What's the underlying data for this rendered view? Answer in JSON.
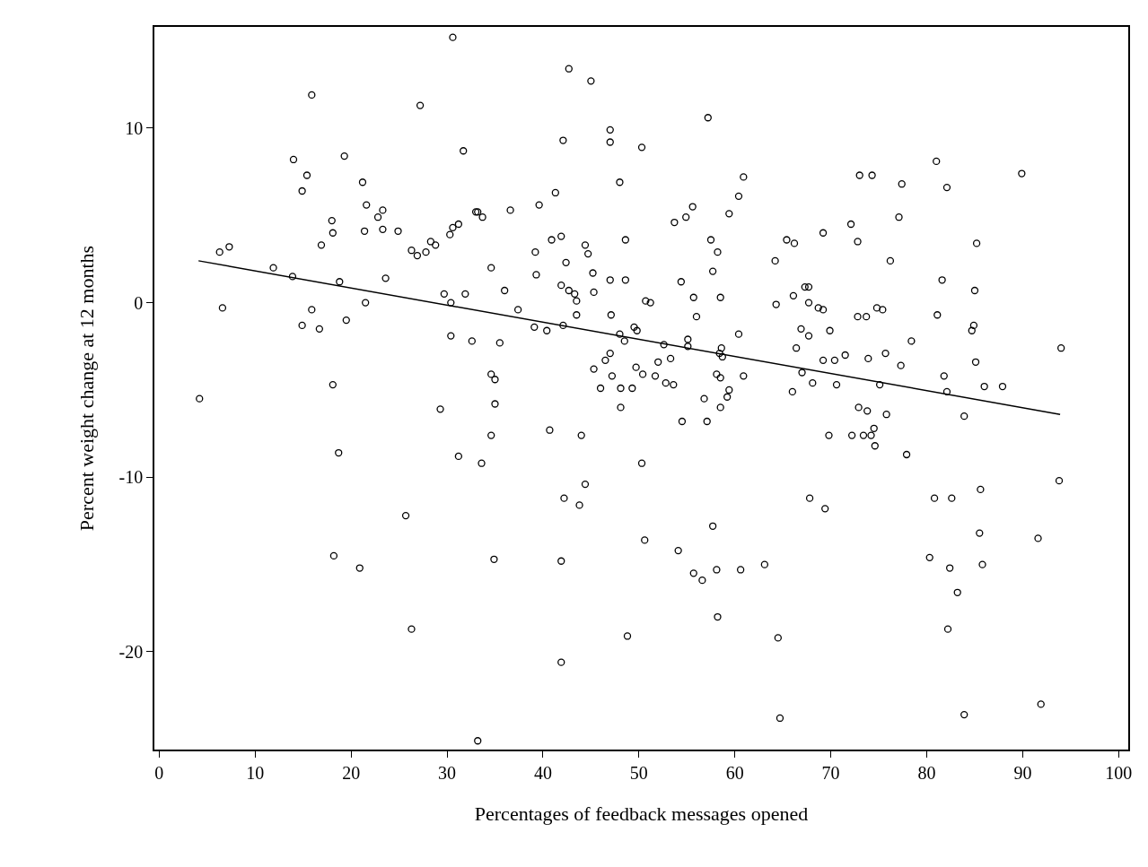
{
  "chart_data": {
    "type": "scatter",
    "xlabel": "Percentages of feedback messages opened",
    "ylabel": "Percent weight change at 12 months",
    "xlim": [
      -0.5,
      101
    ],
    "ylim": [
      -25.6,
      15.8
    ],
    "xticks": [
      0,
      10,
      20,
      30,
      40,
      50,
      60,
      70,
      80,
      90,
      100
    ],
    "yticks": [
      -20,
      -10,
      0,
      10
    ],
    "series": [
      {
        "type": "scatter",
        "color": "#000000",
        "marker": "circle",
        "x": [
          30.6,
          15.9,
          27.2,
          31.7,
          14.0,
          15.4,
          14.9,
          19.3,
          21.2,
          21.6,
          23.3,
          22.8,
          18.0,
          18.1,
          21.4,
          23.3,
          24.9,
          16.9,
          6.3,
          7.3,
          26.3,
          26.9,
          27.8,
          28.3,
          28.8,
          30.3,
          30.6,
          31.2,
          33.0,
          33.2,
          33.7,
          34.6,
          11.9,
          13.9,
          18.8,
          23.6,
          6.6,
          15.9,
          21.5,
          29.7,
          30.4,
          31.9,
          14.9,
          16.7,
          19.5,
          30.4,
          32.6,
          18.1,
          42.7,
          45.0,
          57.2,
          47.0,
          47.0,
          42.1,
          50.3,
          48.0,
          60.9,
          60.4,
          41.3,
          39.6,
          36.6,
          55.6,
          54.9,
          53.7,
          59.4,
          69.2,
          48.6,
          40.9,
          41.9,
          57.5,
          44.4,
          44.7,
          39.2,
          65.4,
          66.2,
          58.2,
          64.2,
          42.4,
          57.7,
          39.3,
          45.2,
          47.0,
          48.6,
          54.4,
          41.9,
          42.7,
          43.3,
          43.5,
          45.3,
          36.0,
          50.7,
          51.2,
          55.7,
          58.5,
          66.1,
          67.3,
          67.7,
          64.3,
          67.7,
          68.7,
          69.2,
          37.4,
          43.5,
          47.1,
          56.0,
          39.1,
          40.4,
          42.1,
          35.5,
          48.0,
          48.5,
          49.5,
          49.8,
          52.6,
          55.1,
          55.1,
          58.6,
          58.4,
          58.7,
          60.4,
          66.9,
          67.7,
          66.4,
          69.2,
          67.0,
          68.1,
          47.0,
          46.5,
          45.3,
          52.0,
          53.3,
          49.7,
          50.4,
          51.7,
          47.2,
          34.6,
          35.0,
          58.1,
          58.5,
          60.9,
          81.0,
          89.9,
          73.0,
          74.3,
          77.4,
          82.1,
          77.1,
          72.1,
          72.8,
          85.2,
          76.2,
          81.6,
          85.0,
          72.8,
          73.7,
          74.8,
          75.4,
          81.1,
          84.9,
          84.7,
          69.9,
          78.4,
          94.0,
          70.4,
          71.5,
          73.9,
          75.7,
          77.3,
          85.1,
          81.8,
          70.6,
          75.1,
          86.0,
          87.9,
          4.2,
          18.7,
          18.2,
          20.9,
          25.7,
          26.3,
          29.3,
          31.2,
          33.6,
          34.6,
          35.0,
          34.9,
          33.2,
          40.7,
          44.0,
          44.4,
          42.2,
          43.8,
          41.9,
          48.8,
          41.9,
          46.0,
          48.1,
          49.3,
          48.1,
          50.3,
          50.6,
          54.1,
          55.7,
          56.6,
          58.1,
          57.7,
          58.2,
          60.6,
          63.1,
          64.5,
          64.7,
          67.8,
          69.4,
          54.5,
          57.1,
          58.5,
          59.2,
          59.4,
          56.8,
          52.8,
          53.6,
          66.0,
          69.8,
          72.2,
          73.4,
          74.2,
          74.5,
          74.6,
          72.9,
          73.8,
          75.8,
          77.9,
          83.9,
          82.1,
          93.8,
          80.8,
          82.6,
          85.6,
          85.5,
          85.8,
          91.6,
          80.3,
          82.4,
          83.2,
          82.2,
          83.9,
          91.9
        ],
        "values": [
          15.2,
          11.9,
          11.3,
          8.7,
          8.2,
          7.3,
          6.4,
          8.4,
          6.9,
          5.6,
          5.3,
          4.9,
          4.7,
          4.0,
          4.1,
          4.2,
          4.1,
          3.3,
          2.9,
          3.2,
          3.0,
          2.7,
          2.9,
          3.5,
          3.3,
          3.9,
          4.3,
          4.5,
          5.2,
          5.2,
          4.9,
          2.0,
          2.0,
          1.5,
          1.2,
          1.4,
          -0.3,
          -0.4,
          0.0,
          0.5,
          0.0,
          0.5,
          -1.3,
          -1.5,
          -1.0,
          -1.9,
          -2.2,
          -4.7,
          13.4,
          12.7,
          10.6,
          9.9,
          9.2,
          9.3,
          8.9,
          6.9,
          7.2,
          6.1,
          6.3,
          5.6,
          5.3,
          5.5,
          4.9,
          4.6,
          5.1,
          4.0,
          3.6,
          3.6,
          3.8,
          3.6,
          3.3,
          2.8,
          2.9,
          3.6,
          3.4,
          2.9,
          2.4,
          2.3,
          1.8,
          1.6,
          1.7,
          1.3,
          1.3,
          1.2,
          1.0,
          0.7,
          0.5,
          0.1,
          0.6,
          0.7,
          0.1,
          0.0,
          0.3,
          0.3,
          0.4,
          0.9,
          0.9,
          -0.1,
          0.0,
          -0.3,
          -0.4,
          -0.4,
          -0.7,
          -0.7,
          -0.8,
          -1.4,
          -1.6,
          -1.3,
          -2.3,
          -1.8,
          -2.2,
          -1.4,
          -1.6,
          -2.4,
          -2.1,
          -2.5,
          -2.6,
          -2.9,
          -3.1,
          -1.8,
          -1.5,
          -1.9,
          -2.6,
          -3.3,
          -4.0,
          -4.6,
          -2.9,
          -3.3,
          -3.8,
          -3.4,
          -3.2,
          -3.7,
          -4.1,
          -4.2,
          -4.2,
          -4.1,
          -4.4,
          -4.1,
          -4.3,
          -4.2,
          8.1,
          7.4,
          7.3,
          7.3,
          6.8,
          6.6,
          4.9,
          4.5,
          3.5,
          3.4,
          2.4,
          1.3,
          0.7,
          -0.8,
          -0.8,
          -0.3,
          -0.4,
          -0.7,
          -1.3,
          -1.6,
          -1.6,
          -2.2,
          -2.6,
          -3.3,
          -3.0,
          -3.2,
          -2.9,
          -3.6,
          -3.4,
          -4.2,
          -4.7,
          -4.7,
          -4.8,
          -4.8,
          -5.5,
          -8.6,
          -14.5,
          -15.2,
          -12.2,
          -18.7,
          -6.1,
          -8.8,
          -9.2,
          -7.6,
          -5.8,
          -14.7,
          -25.1,
          -7.3,
          -7.6,
          -10.4,
          -11.2,
          -11.6,
          -14.8,
          -19.1,
          -20.6,
          -4.9,
          -4.9,
          -4.9,
          -6.0,
          -9.2,
          -13.6,
          -14.2,
          -15.5,
          -15.9,
          -15.3,
          -12.8,
          -18.0,
          -15.3,
          -15.0,
          -19.2,
          -23.8,
          -11.2,
          -11.8,
          -6.8,
          -6.8,
          -6.0,
          -5.4,
          -5.0,
          -5.5,
          -4.6,
          -4.7,
          -5.1,
          -7.6,
          -7.6,
          -7.6,
          -7.6,
          -7.2,
          -8.2,
          -6.0,
          -6.2,
          -6.4,
          -8.7,
          -6.5,
          -5.1,
          -10.2,
          -11.2,
          -11.2,
          -10.7,
          -13.2,
          -15.0,
          -13.5,
          -14.6,
          -15.2,
          -16.6,
          -18.7,
          -23.6,
          -23.0
        ]
      },
      {
        "type": "line",
        "color": "#000000",
        "line_style": "solid",
        "x": [
          4.1,
          93.9
        ],
        "values": [
          2.4,
          -6.4
        ]
      }
    ]
  }
}
